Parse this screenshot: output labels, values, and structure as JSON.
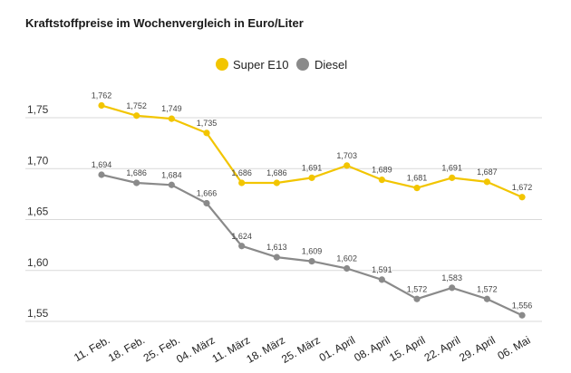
{
  "chart_data": {
    "type": "line",
    "title": "Kraftstoffpreise im Wochenvergleich in Euro/Liter",
    "categories": [
      "11. Feb.",
      "18. Feb.",
      "25. Feb.",
      "04. März",
      "11. März",
      "18. März",
      "25. März",
      "01. April",
      "08. April",
      "15. April",
      "22. April",
      "29. April",
      "06. Mai"
    ],
    "series": [
      {
        "name": "Super E10",
        "color": "#f2c500",
        "values": [
          1.762,
          1.752,
          1.749,
          1.735,
          1.686,
          1.686,
          1.691,
          1.703,
          1.689,
          1.681,
          1.691,
          1.687,
          1.672
        ],
        "labels": [
          "1,762",
          "1,752",
          "1,749",
          "1,735",
          "1,686",
          "1,686",
          "1,691",
          "1,703",
          "1,689",
          "1,681",
          "1,691",
          "1,687",
          "1,672"
        ]
      },
      {
        "name": "Diesel",
        "color": "#8a8a8a",
        "values": [
          1.694,
          1.686,
          1.684,
          1.666,
          1.624,
          1.613,
          1.609,
          1.602,
          1.591,
          1.572,
          1.583,
          1.572,
          1.556
        ],
        "labels": [
          "1,694",
          "1,686",
          "1,684",
          "1,666",
          "1,624",
          "1,613",
          "1,609",
          "1,602",
          "1,591",
          "1,572",
          "1,583",
          "1,572",
          "1,556"
        ]
      }
    ],
    "yticks": [
      1.55,
      1.6,
      1.65,
      1.7,
      1.75
    ],
    "ytick_labels": [
      "1,55",
      "1,60",
      "1,65",
      "1,70",
      "1,75"
    ],
    "ylim": [
      1.545,
      1.79
    ],
    "grid": true,
    "legend": "top-center"
  }
}
